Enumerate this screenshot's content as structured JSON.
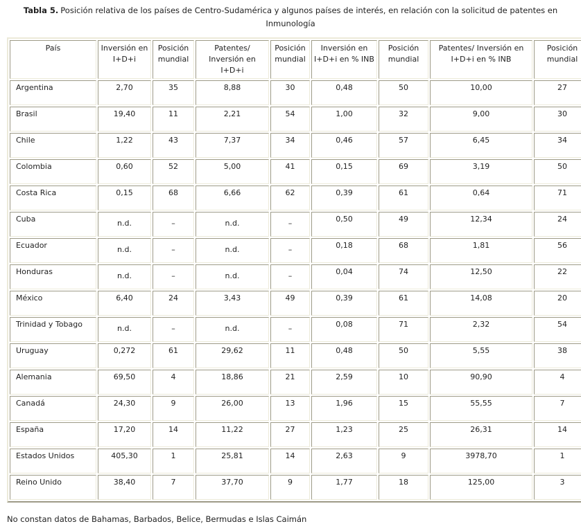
{
  "title": {
    "label": "Tabla 5.",
    "text": "Posición relativa de los países de Centro-Sudamérica y algunos países de interés, en relación con  la solicitud de patentes en Inmunología"
  },
  "table": {
    "columns": [
      "País",
      "Inversión en I+D+i",
      "Posición mundial",
      "Patentes/ Inversión en I+D+i",
      "Posición mundial",
      "Inversión en I+D+i en % INB",
      "Posición mundial",
      "Patentes/ Inversión en I+D+i en % INB",
      "Posición mundial"
    ],
    "rows": [
      [
        "Argentina",
        "2,70",
        "35",
        "8,88",
        "30",
        "0,48",
        "50",
        "10,00",
        "27"
      ],
      [
        "Brasil",
        "19,40",
        "11",
        "2,21",
        "54",
        "1,00",
        "32",
        "9,00",
        "30"
      ],
      [
        "Chile",
        "1,22",
        "43",
        "7,37",
        "34",
        "0,46",
        "57",
        "6,45",
        "34"
      ],
      [
        "Colombia",
        "0,60",
        "52",
        "5,00",
        "41",
        "0,15",
        "69",
        "3,19",
        "50"
      ],
      [
        "Costa Rica",
        "0,15",
        "68",
        "6,66",
        "62",
        "0,39",
        "61",
        "0,64",
        "71"
      ],
      [
        "Cuba",
        "n.d.",
        "–",
        "n.d.",
        "–",
        "0,50",
        "49",
        "12,34",
        "24"
      ],
      [
        "Ecuador",
        "n.d.",
        "–",
        "n.d.",
        "–",
        "0,18",
        "68",
        "1,81",
        "56"
      ],
      [
        "Honduras",
        "n.d.",
        "–",
        "n.d.",
        "–",
        "0,04",
        "74",
        "12,50",
        "22"
      ],
      [
        "México",
        "6,40",
        "24",
        "3,43",
        "49",
        "0,39",
        "61",
        "14,08",
        "20"
      ],
      [
        "Trinidad y Tobago",
        "n.d.",
        "–",
        "n.d.",
        "–",
        "0,08",
        "71",
        "2,32",
        "54"
      ],
      [
        "Uruguay",
        "0,272",
        "61",
        "29,62",
        "11",
        "0,48",
        "50",
        "5,55",
        "38"
      ],
      [
        "Alemania",
        "69,50",
        "4",
        "18,86",
        "21",
        "2,59",
        "10",
        "90,90",
        "4"
      ],
      [
        "Canadá",
        "24,30",
        "9",
        "26,00",
        "13",
        "1,96",
        "15",
        "55,55",
        "7"
      ],
      [
        "España",
        "17,20",
        "14",
        "11,22",
        "27",
        "1,23",
        "25",
        "26,31",
        "14"
      ],
      [
        "Estados Unidos",
        "405,30",
        "1",
        "25,81",
        "14",
        "2,63",
        "9",
        "3978,70",
        "1"
      ],
      [
        "Reino Unido",
        "38,40",
        "7",
        "37,70",
        "9",
        "1,77",
        "18",
        "125,00",
        "3"
      ]
    ],
    "no_data_value": "n.d.",
    "no_position_value": "–"
  },
  "footnote": "No constan datos de Bahamas, Barbados, Belice, Bermudas e Islas Caimán",
  "colors": {
    "background": "#ffffff",
    "text": "#1f1f1f",
    "border_dark": "#9d9a87",
    "border_light": "#ecead9"
  }
}
